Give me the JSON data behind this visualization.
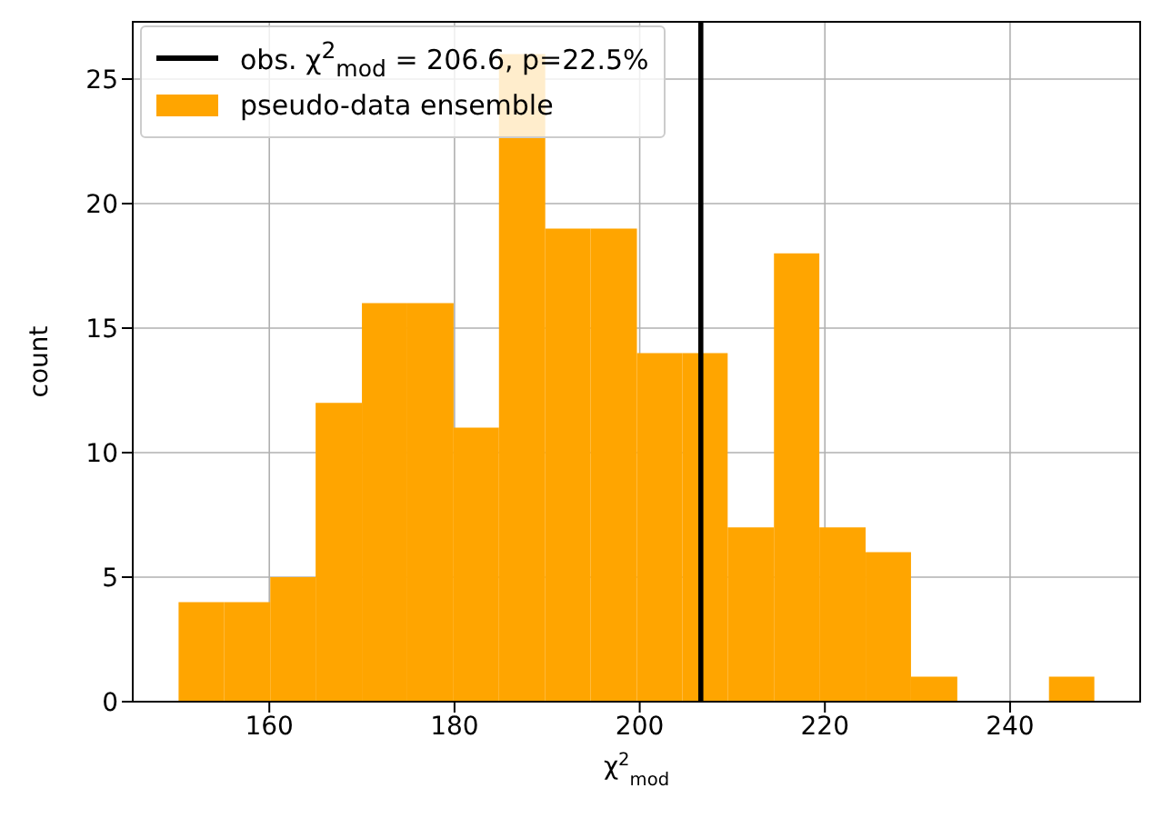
{
  "chart_data": {
    "type": "histogram",
    "xlabel": "χ$^{2}$$_{mod}$",
    "ylabel": "count",
    "bins": [
      150.2,
      155.1,
      160.1,
      165.0,
      170.0,
      174.9,
      179.9,
      184.8,
      189.8,
      194.7,
      199.7,
      204.6,
      209.5,
      214.5,
      219.4,
      224.4,
      229.3,
      234.3,
      244.2,
      249.1
    ],
    "series": [
      {
        "name": "pseudo-data ensemble",
        "color": "#ffa500",
        "values": [
          4,
          4,
          5,
          12,
          16,
          16,
          11,
          26,
          19,
          19,
          14,
          14,
          7,
          18,
          7,
          6,
          1,
          0,
          1
        ]
      }
    ],
    "ref_lines": [
      {
        "axis": "x",
        "value": 206.6,
        "label": "obs. χ$^{2}$$_{mod}$ = 206.6, p=22.5%",
        "color": "#000000"
      }
    ],
    "xlim": [
      145.25,
      254.05
    ],
    "ylim": [
      0,
      27.3
    ],
    "xticks": [
      160,
      180,
      200,
      220,
      240
    ],
    "yticks": [
      0,
      5,
      10,
      15,
      20,
      25
    ],
    "grid": true,
    "legend": "top left"
  }
}
